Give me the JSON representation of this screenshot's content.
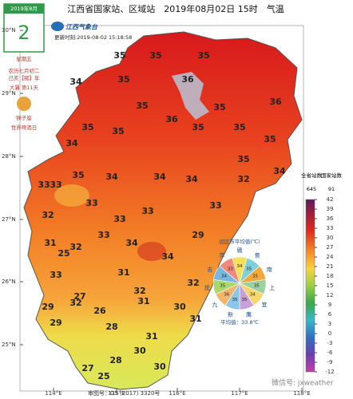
{
  "header": {
    "title": "江西省国家站、区域站　2019年08月02日 15时　气温"
  },
  "calendar": {
    "month": "2019年8月",
    "day": "2",
    "weekday": "星期五",
    "lunar": "农历七月初二",
    "year": "己亥【猪】年",
    "solar_term": "大暑 第11天",
    "zodiac": "狮子座",
    "festival": "世界啤酒日"
  },
  "logo": {
    "name": "江西气象台",
    "update_time": "更新时刻:2019-08-02 15:18:58"
  },
  "map": {
    "lat_ticks": [
      "30°N",
      "29°N",
      "28°N",
      "27°N",
      "26°N",
      "25°N"
    ],
    "lon_ticks": [
      "114°E",
      "115°E",
      "116°E",
      "117°E",
      "118°E"
    ],
    "labels": [
      35,
      35,
      35,
      34,
      35,
      36,
      36,
      35,
      36,
      35,
      35,
      35,
      35,
      35,
      34,
      35,
      35,
      34,
      35,
      34,
      33,
      33,
      34,
      32,
      34,
      33,
      33,
      33,
      32,
      33,
      33,
      34,
      32,
      29,
      31,
      25,
      34,
      33,
      32,
      31,
      32,
      32,
      29,
      27,
      26,
      31,
      30,
      31,
      29,
      28,
      31,
      30,
      28,
      27,
      25,
      30
    ],
    "approval": "审图号：GS (2017) 3320号"
  },
  "legend": {
    "total_label": "全省站数",
    "total": 645,
    "national_label": "国家站数",
    "national": 91,
    "ticks": [
      42,
      39,
      36,
      33,
      30,
      27,
      24,
      21,
      18,
      15,
      12,
      9,
      6,
      3,
      0,
      -3,
      -6,
      -9,
      -12
    ]
  },
  "city_average": {
    "title": "设区市平均值(℃)",
    "cities": [
      {
        "name": "赣",
        "value": 34
      },
      {
        "name": "景",
        "value": 35
      },
      {
        "name": "南",
        "value": 35
      },
      {
        "name": "上",
        "value": 35
      },
      {
        "name": "宜",
        "value": 34
      },
      {
        "name": "鹰",
        "value": 35
      },
      {
        "name": "新",
        "value": 35
      },
      {
        "name": "九",
        "value": 36
      },
      {
        "name": "抚",
        "value": 35
      },
      {
        "name": "吉",
        "value": 34
      },
      {
        "name": "萍",
        "value": 33
      }
    ],
    "average": "平均值：33.8℃"
  },
  "watermark": "微信号: jxweather"
}
